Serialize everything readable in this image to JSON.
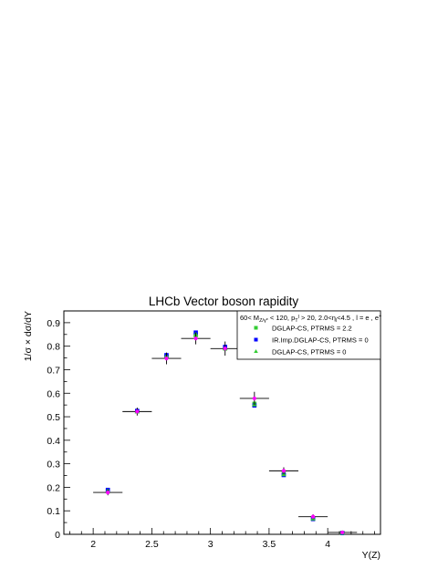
{
  "chart_data": {
    "type": "scatter",
    "title": "LHCb Vector boson rapidity",
    "xlabel": "Y(Z)",
    "ylabel": "1/σ × dσ/dY",
    "xlim": [
      1.75,
      4.45
    ],
    "ylim": [
      0,
      0.95
    ],
    "xticks": [
      "2",
      "2.5",
      "3",
      "3.5",
      "4"
    ],
    "yticks": [
      "0",
      "0.1",
      "0.2",
      "0.3",
      "0.4",
      "0.5",
      "0.6",
      "0.7",
      "0.8",
      "0.9"
    ],
    "legend": {
      "header": "60< M_{Z/γ*} < 120, p_T^l > 20, 2.0<η_l<4.5 , l = e , e^+",
      "placement": "top-right",
      "entries": [
        "DGLAP-CS, PTRMS = 2.2",
        "IR.Imp.DGLAP-CS, PTRMS = 0",
        "DGLAP-CS, PTRMS = 0"
      ]
    },
    "data_points": {
      "x": [
        2.125,
        2.375,
        2.625,
        2.875,
        3.125,
        3.375,
        3.625,
        3.875,
        4.125
      ],
      "xerr": [
        0.125,
        0.125,
        0.125,
        0.125,
        0.125,
        0.125,
        0.125,
        0.125,
        0.125
      ],
      "y": [
        0.178,
        0.522,
        0.748,
        0.833,
        0.79,
        0.578,
        0.27,
        0.075,
        0.008
      ],
      "yerr": [
        0.012,
        0.017,
        0.025,
        0.025,
        0.03,
        0.028,
        0.015,
        0.01,
        0.004
      ]
    },
    "series": [
      {
        "name": "DGLAP-CS, PTRMS = 2.2",
        "color": "#33cc33",
        "marker": "square",
        "values": [
          0.183,
          0.523,
          0.755,
          0.847,
          0.79,
          0.555,
          0.258,
          0.068,
          0.006
        ]
      },
      {
        "name": "IR.Imp.DGLAP-CS, PTRMS = 0",
        "color": "#0000ff",
        "marker": "square",
        "values": [
          0.189,
          0.525,
          0.762,
          0.858,
          0.797,
          0.548,
          0.252,
          0.065,
          0.005
        ]
      },
      {
        "name": "DGLAP-CS, PTRMS = 0",
        "color": "#33cc33",
        "marker": "triangle",
        "values": [
          0.184,
          0.522,
          0.757,
          0.85,
          0.792,
          0.552,
          0.255,
          0.067,
          0.006
        ]
      }
    ],
    "colors": {
      "data_marker": "#ff00ff",
      "error_bar": "#000000"
    }
  }
}
